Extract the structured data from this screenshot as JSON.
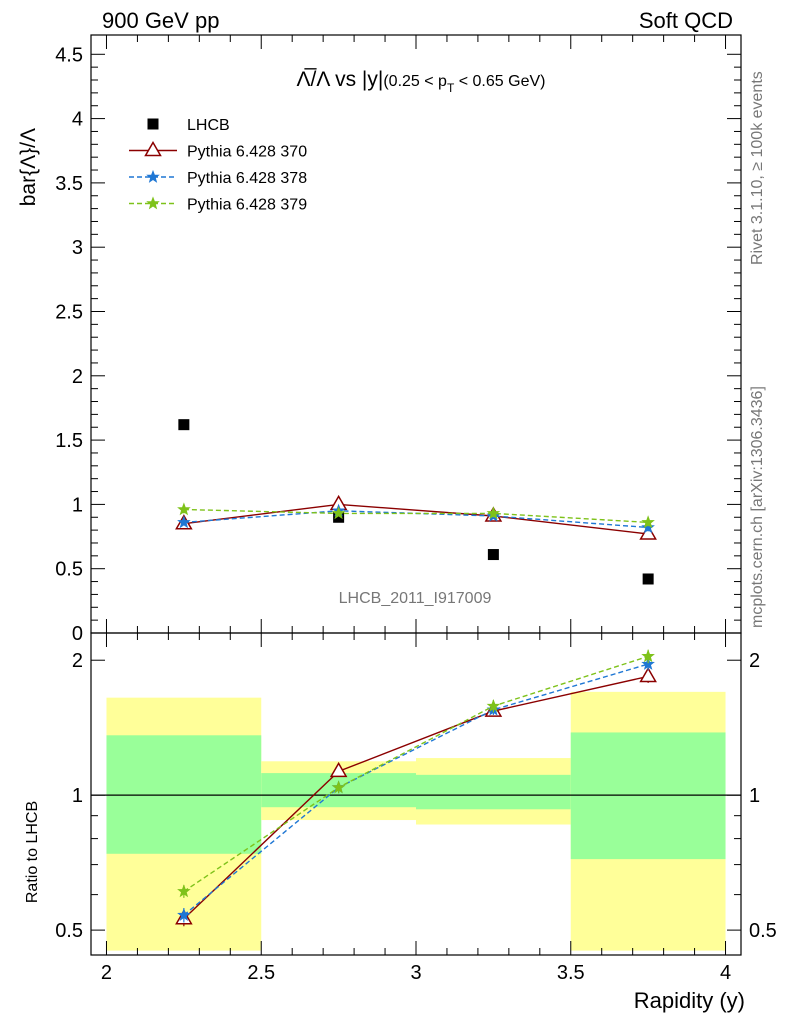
{
  "header": {
    "left": "900 GeV pp",
    "right": "Soft QCD"
  },
  "side_text": {
    "rivet": "Rivet 3.1.10, ≥ 100k events",
    "mcplots": "mcplots.cern.ch [arXiv:1306.3436]"
  },
  "analysis_id": "LHCB_2011_I917009",
  "chart_data": [
    {
      "type": "line",
      "panel": "main",
      "title_parts": {
        "ratio": "Λ̅/Λ",
        "vs": " vs |y|",
        "range_open": "(0.25 < p",
        "sub": "T",
        "range_close": " < 0.65 GeV)"
      },
      "ylabel": "bar{Λ}/Λ",
      "xlim": [
        1.95,
        4.05
      ],
      "ylim": [
        0,
        4.65
      ],
      "grid": false,
      "legend_position": "top-left",
      "x": [
        2.25,
        2.75,
        3.25,
        3.75
      ],
      "y_ticks": [
        0,
        0.5,
        1,
        1.5,
        2,
        2.5,
        3,
        3.5,
        4,
        4.5
      ],
      "y_tick_labels": [
        "0",
        "0.5",
        "1",
        "1.5",
        "2",
        "2.5",
        "3",
        "3.5",
        "4",
        "4.5"
      ],
      "series": [
        {
          "name": "LHCB",
          "values": [
            1.62,
            0.9,
            0.61,
            0.42
          ],
          "errors": [
            0.02,
            0.02,
            0.02,
            0.02
          ],
          "color": "#000000",
          "style": "marker-only",
          "marker": "square"
        },
        {
          "name": "Pythia 6.428 370",
          "values": [
            0.85,
            1.0,
            0.91,
            0.77
          ],
          "errors": [
            0.02,
            0.03,
            0.02,
            0.03
          ],
          "color": "#8b0000",
          "style": "solid",
          "marker": "open-triangle"
        },
        {
          "name": "Pythia 6.428 378",
          "values": [
            0.86,
            0.95,
            0.91,
            0.82
          ],
          "errors": [
            0.02,
            0.02,
            0.02,
            0.03
          ],
          "color": "#1f77d4",
          "style": "dashed",
          "marker": "star"
        },
        {
          "name": "Pythia 6.428 379",
          "values": [
            0.96,
            0.93,
            0.93,
            0.86
          ],
          "errors": [
            0.03,
            0.02,
            0.03,
            0.03
          ],
          "color": "#7ec21a",
          "style": "dashed",
          "marker": "star"
        }
      ]
    },
    {
      "type": "line",
      "panel": "ratio",
      "ylabel": "Ratio to LHCB",
      "xlabel": "Rapidity (y)",
      "xlim": [
        1.95,
        4.05
      ],
      "ylim": [
        0.44,
        2.3
      ],
      "y_scale": "log",
      "x": [
        2.25,
        2.75,
        3.25,
        3.75
      ],
      "x_ticks": [
        2,
        2.5,
        3,
        3.5,
        4
      ],
      "x_tick_labels": [
        "2",
        "2.5",
        "3",
        "3.5",
        "4"
      ],
      "y_ticks": [
        0.5,
        1,
        2
      ],
      "y_tick_labels": [
        "0.5",
        "1",
        "2"
      ],
      "reference_line": 1,
      "bands": [
        {
          "x": [
            2.0,
            2.5
          ],
          "yellow": [
            0.45,
            1.65
          ],
          "green": [
            0.74,
            1.36
          ]
        },
        {
          "x": [
            2.5,
            3.0
          ],
          "yellow": [
            0.88,
            1.19
          ],
          "green": [
            0.94,
            1.12
          ]
        },
        {
          "x": [
            3.0,
            3.5
          ],
          "yellow": [
            0.86,
            1.21
          ],
          "green": [
            0.93,
            1.11
          ]
        },
        {
          "x": [
            3.5,
            4.0
          ],
          "yellow": [
            0.45,
            1.7
          ],
          "green": [
            0.72,
            1.38
          ]
        }
      ],
      "band_colors": {
        "yellow": "#ffff99",
        "green": "#99ff99"
      },
      "series": [
        {
          "name": "Pythia 6.428 370",
          "values": [
            0.53,
            1.13,
            1.54,
            1.84
          ],
          "errors": [
            0.02,
            0.03,
            0.04,
            0.06
          ],
          "color": "#8b0000",
          "style": "solid",
          "marker": "open-triangle"
        },
        {
          "name": "Pythia 6.428 378",
          "values": [
            0.54,
            1.04,
            1.55,
            1.96
          ],
          "errors": [
            0.02,
            0.03,
            0.04,
            0.06
          ],
          "color": "#1f77d4",
          "style": "dashed",
          "marker": "star"
        },
        {
          "name": "Pythia 6.428 379",
          "values": [
            0.61,
            1.04,
            1.58,
            2.04
          ],
          "errors": [
            0.02,
            0.03,
            0.05,
            0.07
          ],
          "color": "#7ec21a",
          "style": "dashed",
          "marker": "star"
        }
      ]
    }
  ]
}
